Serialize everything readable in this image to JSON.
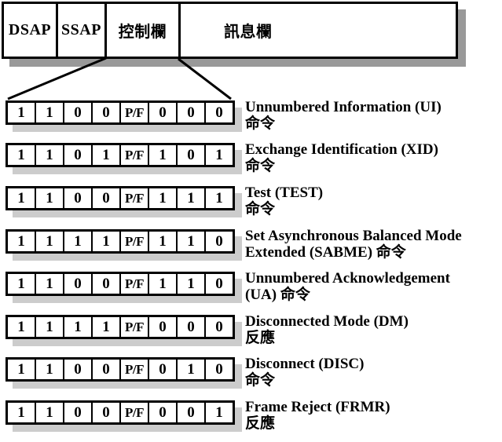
{
  "header_fields": [
    {
      "label": "DSAP"
    },
    {
      "label": "SSAP"
    },
    {
      "label": "控制欄"
    },
    {
      "label": "訊息欄"
    }
  ],
  "control_rows": [
    {
      "bits": [
        "1",
        "1",
        "0",
        "0",
        "P/F",
        "0",
        "0",
        "0"
      ],
      "name_line": "Unnumbered Information (UI)",
      "type_line": "命令"
    },
    {
      "bits": [
        "1",
        "1",
        "0",
        "1",
        "P/F",
        "1",
        "0",
        "1"
      ],
      "name_line": "Exchange Identification (XID)",
      "type_line": "命令"
    },
    {
      "bits": [
        "1",
        "1",
        "0",
        "0",
        "P/F",
        "1",
        "1",
        "1"
      ],
      "name_line": "Test (TEST)",
      "type_line": "命令"
    },
    {
      "bits": [
        "1",
        "1",
        "1",
        "1",
        "P/F",
        "1",
        "1",
        "0"
      ],
      "name_line": "Set Asynchronous Balanced Mode",
      "type_line": "Extended (SABME) 命令"
    },
    {
      "bits": [
        "1",
        "1",
        "0",
        "0",
        "P/F",
        "1",
        "1",
        "0"
      ],
      "name_line": "Unnumbered Acknowledgement",
      "type_line": "(UA) 命令"
    },
    {
      "bits": [
        "1",
        "1",
        "1",
        "1",
        "P/F",
        "0",
        "0",
        "0"
      ],
      "name_line": "Disconnected Mode (DM)",
      "type_line": "反應"
    },
    {
      "bits": [
        "1",
        "1",
        "0",
        "0",
        "P/F",
        "0",
        "1",
        "0"
      ],
      "name_line": "Disconnect (DISC)",
      "type_line": "命令"
    },
    {
      "bits": [
        "1",
        "1",
        "0",
        "0",
        "P/F",
        "0",
        "0",
        "1"
      ],
      "name_line": "Frame Reject (FRMR)",
      "type_line": "反應"
    }
  ],
  "colors": {
    "border": "#000000",
    "frame_shadow": "#999999",
    "row_shadow": "#cccccc",
    "background": "#ffffff"
  }
}
